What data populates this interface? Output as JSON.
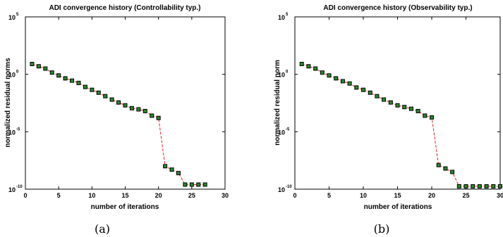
{
  "chart_data": [
    {
      "type": "line",
      "title": "ADI convergence history (Controllability typ.)",
      "xlabel": "number of iterations",
      "ylabel": "normalized residual norms",
      "caption": "(a)",
      "xlim": [
        0,
        30
      ],
      "ylim_log10": [
        -10,
        5
      ],
      "y_scale": "log",
      "x_ticks": [
        "0",
        "5",
        "10",
        "15",
        "20",
        "25",
        "30"
      ],
      "y_tick_base": [
        "10",
        "10",
        "10",
        "10"
      ],
      "y_tick_exp": [
        "5",
        "0",
        "-5",
        "-10"
      ],
      "grid": false,
      "series": [
        {
          "color": "#e8202a",
          "marker_color": "#2a8a2a",
          "x": [
            1,
            2,
            3,
            4,
            5,
            6,
            7,
            8,
            9,
            10,
            11,
            12,
            13,
            14,
            15,
            16,
            17,
            18,
            19,
            20,
            21,
            22,
            23,
            24,
            25,
            26,
            27
          ],
          "log10_y": [
            0.9,
            0.7,
            0.5,
            0.15,
            -0.1,
            -0.35,
            -0.55,
            -0.75,
            -1.1,
            -1.35,
            -1.6,
            -1.9,
            -2.2,
            -2.45,
            -2.7,
            -2.95,
            -3.05,
            -3.2,
            -3.6,
            -3.8,
            -8.0,
            -8.3,
            -8.6,
            -9.6,
            -9.6,
            -9.6,
            -9.6
          ]
        }
      ]
    },
    {
      "type": "line",
      "title": "ADI convergence history (Observability typ.)",
      "xlabel": "number of iterations",
      "ylabel": "normalized residual norm",
      "caption": "(b)",
      "xlim": [
        0,
        30
      ],
      "ylim_log10": [
        -10,
        5
      ],
      "y_scale": "log",
      "x_ticks": [
        "0",
        "5",
        "10",
        "15",
        "20",
        "25",
        "30"
      ],
      "y_tick_base": [
        "10",
        "10",
        "10",
        "10"
      ],
      "y_tick_exp": [
        "5",
        "0",
        "-5",
        "-10"
      ],
      "grid": false,
      "series": [
        {
          "color": "#e8202a",
          "marker_color": "#2a8a2a",
          "x": [
            1,
            2,
            3,
            4,
            5,
            6,
            7,
            8,
            9,
            10,
            11,
            12,
            13,
            14,
            15,
            16,
            17,
            18,
            19,
            20,
            21,
            22,
            23,
            24,
            25,
            26,
            27,
            28,
            29,
            30
          ],
          "log10_y": [
            0.9,
            0.7,
            0.5,
            0.15,
            -0.1,
            -0.35,
            -0.6,
            -0.8,
            -1.15,
            -1.35,
            -1.6,
            -1.9,
            -2.2,
            -2.45,
            -2.7,
            -2.85,
            -3.0,
            -3.2,
            -3.6,
            -3.75,
            -7.9,
            -8.2,
            -8.5,
            -9.75,
            -9.75,
            -9.75,
            -9.75,
            -9.75,
            -9.75,
            -9.75
          ]
        }
      ]
    }
  ]
}
